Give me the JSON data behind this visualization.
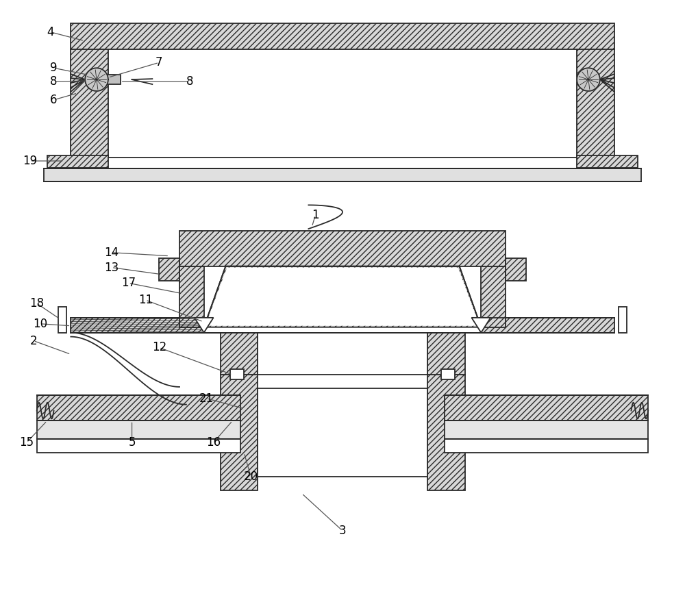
{
  "bg_color": "#ffffff",
  "line_color": "#2a2a2a",
  "hatch_color": "#444444",
  "lw": 1.3,
  "hatch_fc": "#d8d8d8",
  "white": "#ffffff"
}
